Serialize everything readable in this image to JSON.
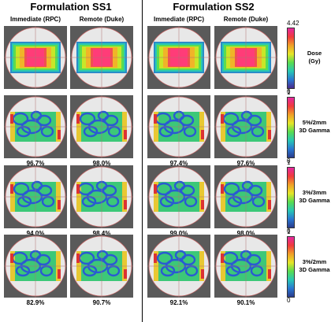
{
  "titles": {
    "left": "Formulation SS1",
    "right": "Formulation SS2"
  },
  "column_headers": [
    "Immediate (RPC)",
    "Remote (Duke)",
    "Immediate (RPC)",
    "Remote (Duke)"
  ],
  "rows": [
    {
      "kind": "dose",
      "colorbar": {
        "max": "4.42",
        "min": "0",
        "label_line1": "Dose",
        "label_line2": "(Gy)"
      },
      "pass_rates": [
        "",
        "",
        "",
        ""
      ]
    },
    {
      "kind": "gamma",
      "colorbar": {
        "max": "1",
        "min": "0",
        "label_line1": "5%/2mm",
        "label_line2": "3D Gamma"
      },
      "pass_rates": [
        "96.7%",
        "98.0%",
        "97.4%",
        "97.6%"
      ]
    },
    {
      "kind": "gamma",
      "colorbar": {
        "max": "1",
        "min": "0",
        "label_line1": "3%/3mm",
        "label_line2": "3D Gamma"
      },
      "pass_rates": [
        "94.0%",
        "98.4%",
        "99.0%",
        "98.0%"
      ]
    },
    {
      "kind": "gamma",
      "colorbar": {
        "max": "1",
        "min": "0",
        "label_line1": "3%/2mm",
        "label_line2": "3D Gamma"
      },
      "pass_rates": [
        "82.9%",
        "90.7%",
        "92.1%",
        "90.1%"
      ]
    }
  ],
  "colors": {
    "background": "#5a5a5a",
    "phantom": "#e8e8e8",
    "outline": "#c86464"
  }
}
